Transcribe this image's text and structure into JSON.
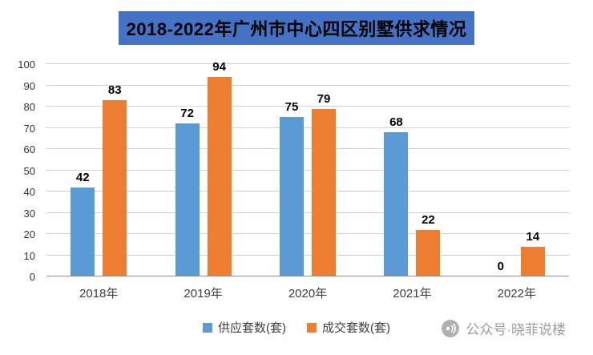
{
  "title": "2018-2022年广州市中心四区别墅供求情况",
  "chart_data": {
    "type": "bar",
    "title": "2018-2022年广州市中心四区别墅供求情况",
    "categories": [
      "2018年",
      "2019年",
      "2020年",
      "2021年",
      "2022年"
    ],
    "series": [
      {
        "name": "供应套数(套)",
        "color": "#5B9BD5",
        "values": [
          42,
          72,
          75,
          68,
          0
        ]
      },
      {
        "name": "成交套数(套)",
        "color": "#ED7D31",
        "values": [
          83,
          94,
          79,
          22,
          14
        ]
      }
    ],
    "ylim": [
      0,
      100
    ],
    "ytick_step": 10,
    "yticks": [
      0,
      10,
      20,
      30,
      40,
      50,
      60,
      70,
      80,
      90,
      100
    ],
    "grid": true,
    "legend_position": "bottom",
    "xlabel": "",
    "ylabel": ""
  },
  "watermark": {
    "text": "公众号·晓菲说楼"
  },
  "colors": {
    "title_background": "#4472C4",
    "title_text": "#000000",
    "grid_line": "#D0D0D0",
    "axis_line": "#8F8F8F"
  }
}
